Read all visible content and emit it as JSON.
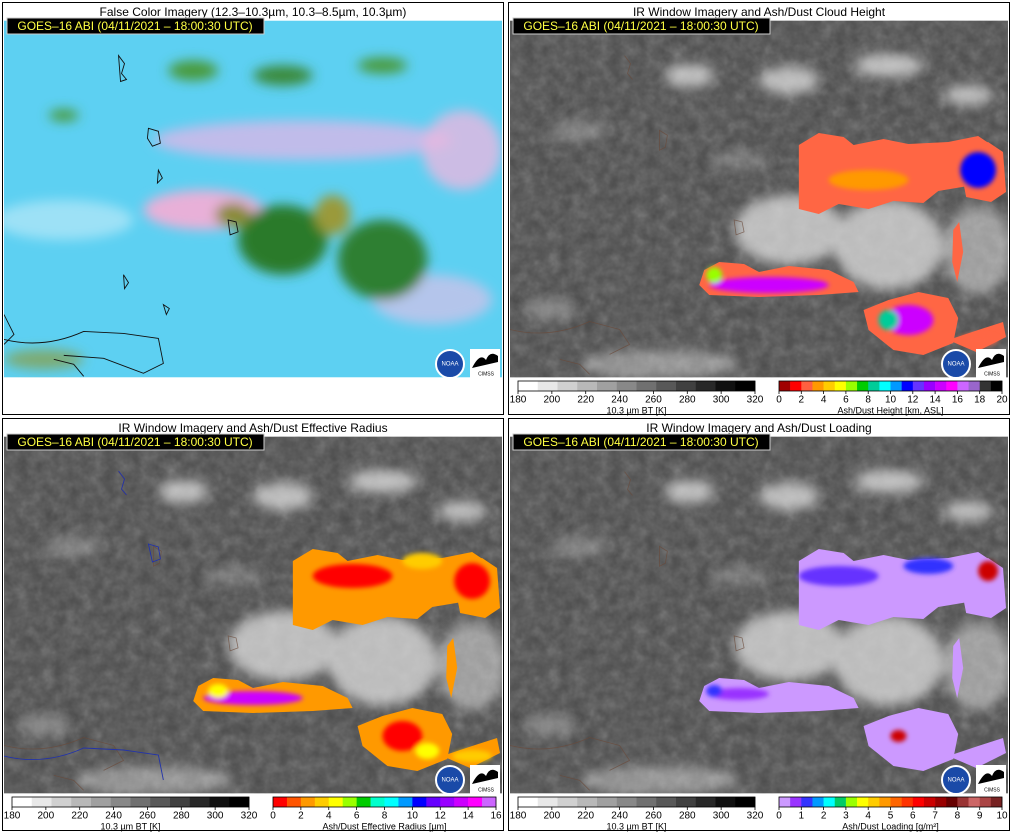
{
  "panels": [
    {
      "title": "False Color Imagery (12.3–10.3µm, 10.3–8.5µm, 10.3µm)",
      "stamp": "GOES–16 ABI (04/11/2021 – 18:00:30 UTC)",
      "logos": [
        "NOAA",
        "CIMSS"
      ],
      "colorbars": []
    },
    {
      "title": "IR Window Imagery and Ash/Dust Cloud Height",
      "stamp": "GOES–16 ABI (04/11/2021 – 18:00:30 UTC)",
      "logos": [
        "NOAA",
        "CIMSS"
      ],
      "colorbars": [
        {
          "label": "10.3 µm BT [K]",
          "ticks": [
            180,
            200,
            220,
            240,
            260,
            280,
            300,
            320
          ],
          "colors": [
            "#ffffff",
            "#e8e8e8",
            "#d0d0d0",
            "#b8b8b8",
            "#a0a0a0",
            "#888888",
            "#707070",
            "#585858",
            "#404040",
            "#282828",
            "#101010",
            "#000000"
          ]
        },
        {
          "label": "Ash/Dust Height [km, ASL]",
          "ticks": [
            0,
            2,
            4,
            6,
            8,
            10,
            12,
            14,
            16,
            18,
            20
          ],
          "colors": [
            "#a00000",
            "#ff0000",
            "#ff6040",
            "#ff9900",
            "#ffcc00",
            "#ffff00",
            "#99ff00",
            "#00cc00",
            "#00cc99",
            "#00ffff",
            "#0099ff",
            "#0000ff",
            "#6633ff",
            "#9900ff",
            "#cc00ff",
            "#ff00ff",
            "#cc66ff",
            "#9966cc",
            "#333333",
            "#000000"
          ]
        }
      ]
    },
    {
      "title": "IR Window Imagery and Ash/Dust Effective Radius",
      "stamp": "GOES–16 ABI (04/11/2021 – 18:00:30 UTC)",
      "logos": [
        "NOAA",
        "CIMSS"
      ],
      "colorbars": [
        {
          "label": "10.3 µm BT [K]",
          "ticks": [
            180,
            200,
            220,
            240,
            260,
            280,
            300,
            320
          ],
          "colors": [
            "#ffffff",
            "#e8e8e8",
            "#d0d0d0",
            "#b8b8b8",
            "#a0a0a0",
            "#888888",
            "#707070",
            "#585858",
            "#404040",
            "#282828",
            "#101010",
            "#000000"
          ]
        },
        {
          "label": "Ash/Dust Effective Radius [µm]",
          "ticks": [
            0,
            2,
            4,
            6,
            8,
            10,
            12,
            14,
            16
          ],
          "colors": [
            "#ff0000",
            "#ff5500",
            "#ff9900",
            "#ffcc00",
            "#ffff00",
            "#99ff00",
            "#00cc00",
            "#00ffcc",
            "#00ffff",
            "#0099ff",
            "#0000ff",
            "#6600ff",
            "#9900ff",
            "#cc00ff",
            "#ff00ff",
            "#cc66ff"
          ]
        }
      ]
    },
    {
      "title": "IR Window Imagery and Ash/Dust Loading",
      "stamp": "GOES–16 ABI (04/11/2021 – 18:00:30 UTC)",
      "logos": [
        "NOAA",
        "CIMSS"
      ],
      "colorbars": [
        {
          "label": "10.3 µm BT [K]",
          "ticks": [
            180,
            200,
            220,
            240,
            260,
            280,
            300,
            320
          ],
          "colors": [
            "#ffffff",
            "#e8e8e8",
            "#d0d0d0",
            "#b8b8b8",
            "#a0a0a0",
            "#888888",
            "#707070",
            "#585858",
            "#404040",
            "#282828",
            "#101010",
            "#000000"
          ]
        },
        {
          "label": "Ash/Dust Loading [g/m²]",
          "ticks": [
            0,
            1,
            2,
            3,
            4,
            5,
            6,
            7,
            8,
            9,
            10
          ],
          "colors": [
            "#cc99ff",
            "#9933ff",
            "#3333ff",
            "#0099ff",
            "#00ffff",
            "#00cc66",
            "#99ff00",
            "#ffff00",
            "#ffcc00",
            "#ff9900",
            "#ff6600",
            "#ff3300",
            "#ff0000",
            "#cc0000",
            "#990000",
            "#660000",
            "#993333",
            "#cc6666",
            "#aa4444",
            "#772222"
          ]
        }
      ]
    }
  ]
}
